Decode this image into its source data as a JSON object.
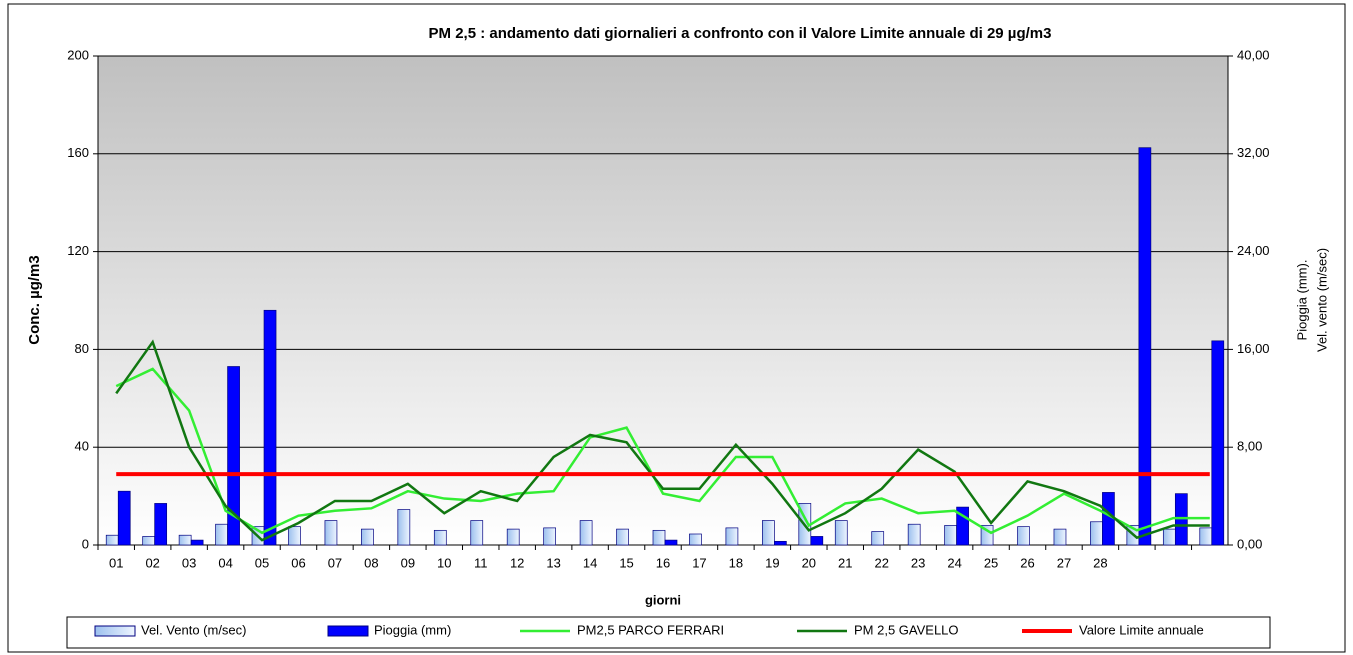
{
  "chart_data": {
    "type": "bar",
    "title": "PM 2,5 : andamento  dati giornalieri  a confronto con il Valore Limite annuale   di  29 µg/m3",
    "x_label": "giorni",
    "y_label": "Conc.  µg/m3",
    "y2_label": [
      "Pioggia (mm).",
      "Vel. vento (m/sec)"
    ],
    "categories": [
      "01",
      "02",
      "03",
      "04",
      "05",
      "06",
      "07",
      "08",
      "09",
      "10",
      "11",
      "12",
      "13",
      "14",
      "15",
      "16",
      "17",
      "18",
      "19",
      "20",
      "21",
      "22",
      "23",
      "24",
      "25",
      "26",
      "27",
      "28",
      null,
      null,
      null
    ],
    "ylim": [
      0,
      200
    ],
    "yticks": [
      0,
      40,
      80,
      120,
      160,
      200
    ],
    "y2lim": [
      0,
      40
    ],
    "y2ticks": [
      {
        "value": 0,
        "label": "0,00"
      },
      {
        "value": 8,
        "label": "8,00"
      },
      {
        "value": 16,
        "label": "16,00"
      },
      {
        "value": 24,
        "label": "24,00"
      },
      {
        "value": 32,
        "label": "32,00"
      },
      {
        "value": 40,
        "label": "40,00"
      }
    ],
    "grid": true,
    "legend": "bottom",
    "series": [
      {
        "name": "Vel. Vento (m/sec)",
        "type": "bar",
        "axis": "y2",
        "color": "#c6dcf5",
        "values": [
          0.8,
          0.7,
          0.8,
          1.7,
          1.5,
          1.5,
          2.0,
          1.3,
          2.9,
          1.2,
          2.0,
          1.3,
          1.4,
          2.0,
          1.3,
          1.2,
          0.9,
          1.4,
          2.0,
          3.4,
          2.0,
          1.1,
          1.7,
          1.6,
          1.6,
          1.5,
          1.3,
          1.9,
          1.6,
          1.3,
          1.4
        ]
      },
      {
        "name": "Pioggia (mm)",
        "type": "bar",
        "axis": "y2",
        "color": "#0000ff",
        "values": [
          4.4,
          3.4,
          0.4,
          14.6,
          19.2,
          0,
          0,
          0,
          0,
          0,
          0,
          0,
          0,
          0,
          0,
          0.4,
          0,
          0,
          0.3,
          0.7,
          0,
          0,
          0,
          3.1,
          0,
          0,
          0,
          4.3,
          32.5,
          4.2,
          16.7
        ]
      },
      {
        "name": "PM2,5 PARCO FERRARI",
        "type": "line",
        "color": "#33ee33",
        "values": [
          65,
          72,
          55,
          14,
          5,
          12,
          14,
          15,
          22,
          19,
          18,
          21,
          22,
          44,
          48,
          21,
          18,
          36,
          36,
          8,
          17,
          19,
          13,
          14,
          5,
          12,
          21,
          14,
          6,
          11,
          11
        ]
      },
      {
        "name": "PM 2,5 GAVELLO",
        "type": "line",
        "color": "#117711",
        "values": [
          62,
          83,
          40,
          16,
          2,
          9,
          18,
          18,
          25,
          13,
          22,
          18,
          36,
          45,
          42,
          23,
          23,
          41,
          25,
          6,
          13,
          23,
          39,
          30,
          9,
          26,
          22,
          16,
          3,
          8,
          8
        ]
      },
      {
        "name": "Valore Limite annuale",
        "type": "line",
        "color": "#ff0000",
        "values": [
          29,
          29,
          29,
          29,
          29,
          29,
          29,
          29,
          29,
          29,
          29,
          29,
          29,
          29,
          29,
          29,
          29,
          29,
          29,
          29,
          29,
          29,
          29,
          29,
          29,
          29,
          29,
          29,
          29,
          29,
          29
        ]
      }
    ]
  }
}
